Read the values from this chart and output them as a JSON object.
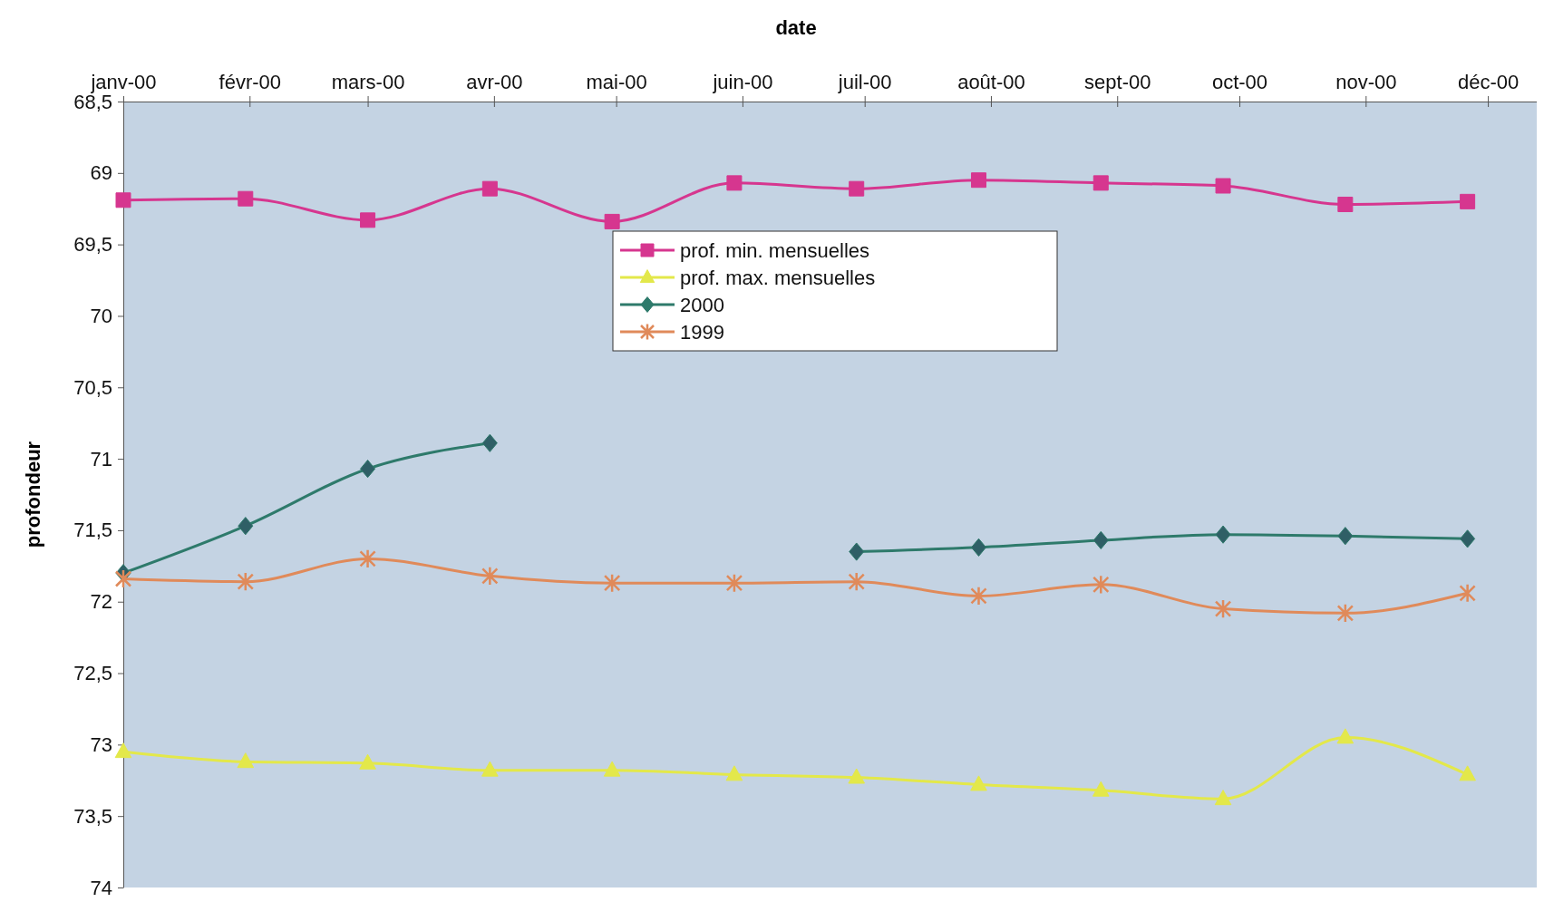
{
  "chart_data": {
    "type": "line",
    "xlabel": "date",
    "ylabel": "profondeur",
    "x": [
      "2000-01-01",
      "2000-01-31",
      "2000-03-01",
      "2000-03-31",
      "2000-04-30",
      "2000-05-30",
      "2000-06-29",
      "2000-07-29",
      "2000-08-28",
      "2000-09-27",
      "2000-10-27",
      "2000-11-26"
    ],
    "xlim": [
      "2000-01-01",
      "2000-12-13"
    ],
    "xticks": [
      {
        "value": "2000-01-01",
        "label": "janv-00"
      },
      {
        "value": "2000-02-01",
        "label": "févr-00"
      },
      {
        "value": "2000-03-01",
        "label": "mars-00"
      },
      {
        "value": "2000-04-01",
        "label": "avr-00"
      },
      {
        "value": "2000-05-01",
        "label": "mai-00"
      },
      {
        "value": "2000-06-01",
        "label": "juin-00"
      },
      {
        "value": "2000-07-01",
        "label": "juil-00"
      },
      {
        "value": "2000-08-01",
        "label": "août-00"
      },
      {
        "value": "2000-09-01",
        "label": "sept-00"
      },
      {
        "value": "2000-10-01",
        "label": "oct-00"
      },
      {
        "value": "2000-11-01",
        "label": "nov-00"
      },
      {
        "value": "2000-12-01",
        "label": "déc-00"
      }
    ],
    "ylim": [
      74,
      68.5
    ],
    "yticks": [
      {
        "value": 68.5,
        "label": "68,5"
      },
      69,
      {
        "value": 69.5,
        "label": "69,5"
      },
      70,
      {
        "value": 70.5,
        "label": "70,5"
      },
      71,
      {
        "value": 71.5,
        "label": "71,5"
      },
      72,
      {
        "value": 72.5,
        "label": "72,5"
      },
      73,
      {
        "value": 73.5,
        "label": "73,5"
      },
      74
    ],
    "grid": false,
    "legend": "top",
    "line_style": "solid",
    "series": [
      {
        "name": "prof. min. mensuelles",
        "color": "#d6368f",
        "marker": "square",
        "values": [
          69.19,
          69.18,
          69.33,
          69.11,
          69.34,
          69.07,
          69.11,
          69.05,
          69.07,
          69.09,
          69.22,
          69.2
        ]
      },
      {
        "name": "prof. max. mensuelles",
        "color": "#e3e84a",
        "marker": "triangle",
        "values": [
          73.05,
          73.12,
          73.13,
          73.18,
          73.18,
          73.21,
          73.23,
          73.28,
          73.32,
          73.38,
          72.95,
          73.21
        ]
      },
      {
        "name": "2000",
        "color": "#2e7a6b",
        "marker": "diamond",
        "values": [
          71.8,
          71.47,
          71.07,
          70.89,
          null,
          null,
          71.65,
          71.62,
          71.57,
          71.53,
          71.54,
          71.56
        ]
      },
      {
        "name": "1999",
        "color": "#e08a5a",
        "marker": "cross",
        "values": [
          71.84,
          71.86,
          71.7,
          71.82,
          71.87,
          71.87,
          71.86,
          71.96,
          71.88,
          72.05,
          72.08,
          71.94
        ]
      }
    ]
  }
}
